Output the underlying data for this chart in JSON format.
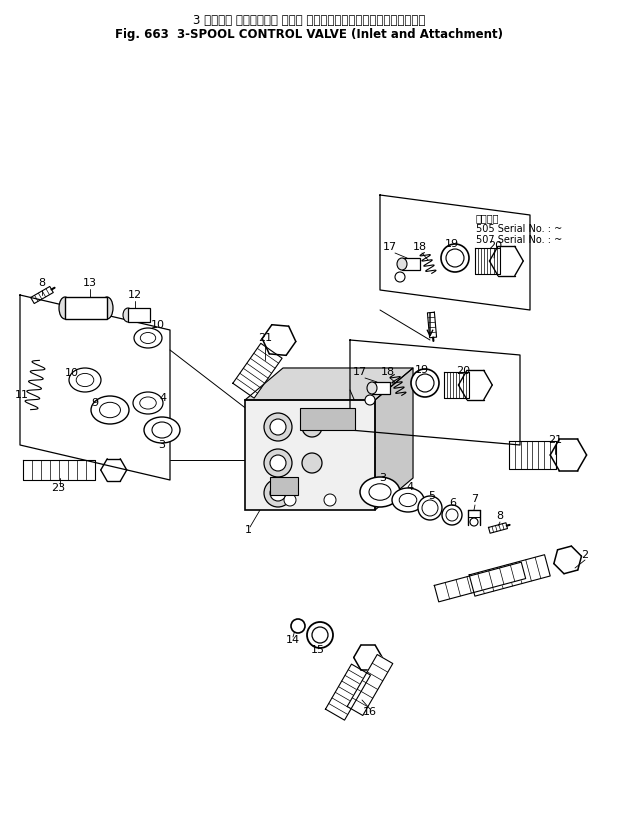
{
  "title_jp": "3 スプール コントロール バルブ （インレットおよびアタッチメント）",
  "title_en": "Fig. 663  3-SPOOL CONTROL VALVE (Inlet and Attachment)",
  "bg_color": "#ffffff",
  "lc": "#000000",
  "fig_width": 6.18,
  "fig_height": 8.25,
  "dpi": 100,
  "serial_line1": "適用号機",
  "serial_line2": "505 Serial No. : ~",
  "serial_line3": "507 Serial No. : ~"
}
